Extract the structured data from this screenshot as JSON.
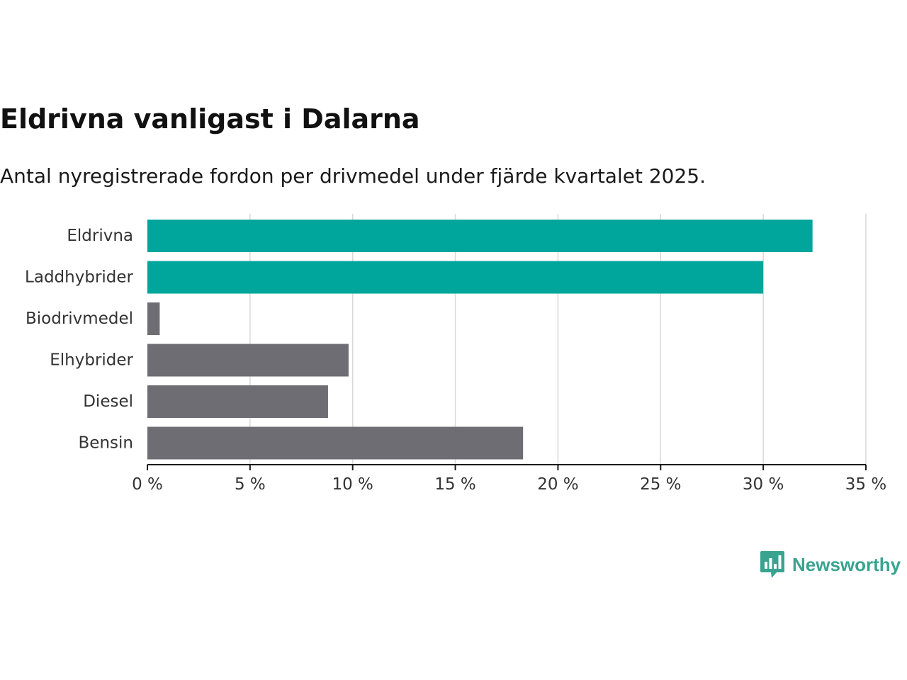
{
  "header": {
    "title": "Eldrivna vanligast i Dalarna",
    "subtitle": "Antal nyregistrerade fordon per drivmedel under fjärde kvartalet 2025."
  },
  "brand": {
    "name": "Newsworthy",
    "color": "#3aa38f"
  },
  "colors": {
    "highlight": "#00a59b",
    "default": "#6e6d73",
    "grid": "#d9d9d9",
    "axis": "#1a1a1a"
  },
  "chart_data": {
    "type": "bar",
    "orientation": "horizontal",
    "title": "Eldrivna vanligast i Dalarna",
    "subtitle": "Antal nyregistrerade fordon per drivmedel under fjärde kvartalet 2025.",
    "xlabel": "",
    "ylabel": "",
    "categories": [
      "Eldrivna",
      "Laddhybrider",
      "Biodrivmedel",
      "Elhybrider",
      "Diesel",
      "Bensin"
    ],
    "values": [
      32.4,
      30.0,
      0.6,
      9.8,
      8.8,
      18.3
    ],
    "highlighted": [
      true,
      true,
      false,
      false,
      false,
      false
    ],
    "xlim": [
      0,
      35
    ],
    "xticks": [
      0,
      5,
      10,
      15,
      20,
      25,
      30,
      35
    ],
    "tick_suffix": " %",
    "grid": true
  }
}
